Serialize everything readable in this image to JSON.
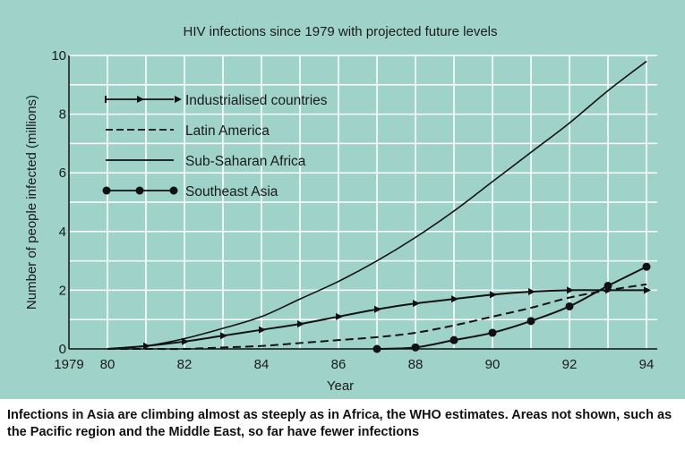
{
  "chart_data": {
    "type": "line",
    "title": "HIV infections since 1979 with projected future levels",
    "xlabel": "Year",
    "ylabel": "Number of people infected (millions)",
    "xlim": [
      1979,
      1994
    ],
    "ylim": [
      0,
      10
    ],
    "x_tick_labels": [
      "1979",
      "80",
      "82",
      "84",
      "86",
      "88",
      "90",
      "92",
      "94"
    ],
    "x_tick_values": [
      1979,
      1980,
      1982,
      1984,
      1986,
      1988,
      1990,
      1992,
      1994
    ],
    "y_tick_labels": [
      "0",
      "2",
      "4",
      "6",
      "8",
      "10"
    ],
    "y_tick_values": [
      0,
      2,
      4,
      6,
      8,
      10
    ],
    "grid": true,
    "legend_placement": "top-left",
    "series": [
      {
        "name": "Industrialised countries",
        "style": "arrow-markers",
        "x": [
          1980,
          1981,
          1982,
          1983,
          1984,
          1985,
          1986,
          1987,
          1988,
          1989,
          1990,
          1991,
          1992,
          1993,
          1994
        ],
        "values": [
          0,
          0.1,
          0.25,
          0.45,
          0.65,
          0.85,
          1.1,
          1.35,
          1.55,
          1.7,
          1.85,
          1.95,
          2.0,
          2.0,
          2.0
        ]
      },
      {
        "name": "Latin America",
        "style": "dashed",
        "x": [
          1980,
          1981,
          1982,
          1983,
          1984,
          1985,
          1986,
          1987,
          1988,
          1989,
          1990,
          1991,
          1992,
          1993,
          1994
        ],
        "values": [
          0,
          0,
          0,
          0.05,
          0.1,
          0.2,
          0.3,
          0.4,
          0.55,
          0.8,
          1.1,
          1.4,
          1.75,
          2.0,
          2.2
        ]
      },
      {
        "name": "Sub-Saharan Africa",
        "style": "solid",
        "x": [
          1980,
          1981,
          1982,
          1983,
          1984,
          1985,
          1986,
          1987,
          1988,
          1989,
          1990,
          1991,
          1992,
          1993,
          1994
        ],
        "values": [
          0,
          0.1,
          0.35,
          0.7,
          1.1,
          1.7,
          2.3,
          3.0,
          3.8,
          4.7,
          5.7,
          6.7,
          7.7,
          8.8,
          9.8
        ]
      },
      {
        "name": "Southeast Asia",
        "style": "dot-markers",
        "x": [
          1987,
          1988,
          1989,
          1990,
          1991,
          1992,
          1993,
          1994
        ],
        "values": [
          0,
          0.05,
          0.3,
          0.55,
          0.95,
          1.45,
          2.15,
          2.8
        ]
      }
    ],
    "colors": {
      "background": "#9fd3ca",
      "grid": "#ffffff",
      "line": "#111111"
    }
  },
  "caption": "Infections in Asia are climbing almost as steeply as in Africa, the WHO estimates. Areas not shown, such as the Pacific region and the Middle East, so far have fewer infections"
}
